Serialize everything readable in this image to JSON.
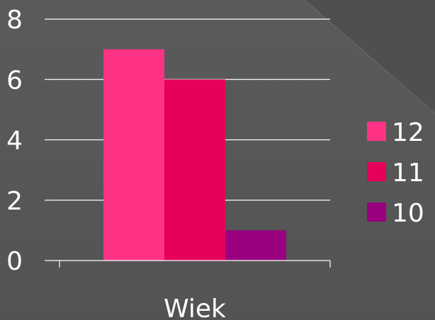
{
  "chart_data": {
    "type": "bar",
    "categories": [
      "Wiek"
    ],
    "series": [
      {
        "name": "12",
        "values": [
          7
        ],
        "color": "#ff3385"
      },
      {
        "name": "11",
        "values": [
          6
        ],
        "color": "#e6005c"
      },
      {
        "name": "10",
        "values": [
          1
        ],
        "color": "#990080"
      }
    ],
    "ylim": [
      0,
      8
    ],
    "yticks": [
      "0",
      "2",
      "4",
      "6",
      "8"
    ],
    "grid": true,
    "legend": "right",
    "axis_color": "#ffffff",
    "background": "#595959"
  }
}
